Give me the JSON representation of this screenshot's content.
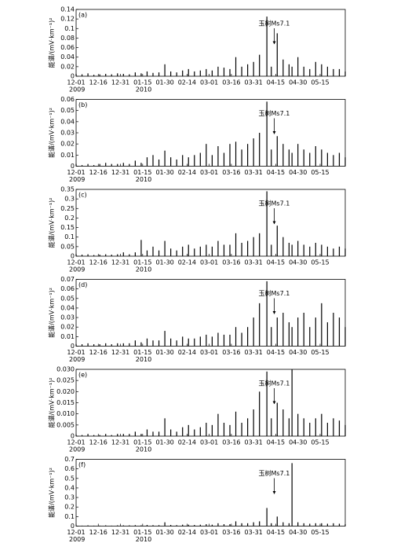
{
  "chart_data": [
    {
      "type": "bar",
      "panel_label": "(a)",
      "y_label": "能谱/(mV·km⁻¹)²",
      "color": "#000000",
      "x": [
        0,
        4,
        8,
        12,
        16,
        20,
        24,
        28,
        32,
        36,
        40,
        44,
        48,
        52,
        56,
        60,
        64,
        68,
        72,
        76,
        80,
        84,
        88,
        92,
        96,
        100,
        104,
        108,
        112,
        116,
        120,
        124,
        129,
        132,
        136,
        140,
        144,
        146,
        150,
        154,
        158,
        162,
        166,
        170,
        174,
        178,
        182
      ],
      "values": [
        0.005,
        0.004,
        0.006,
        0.003,
        0.004,
        0.005,
        0.004,
        0.006,
        0.005,
        0.004,
        0.008,
        0.006,
        0.01,
        0.007,
        0.008,
        0.025,
        0.01,
        0.008,
        0.012,
        0.015,
        0.01,
        0.012,
        0.015,
        0.012,
        0.02,
        0.018,
        0.015,
        0.04,
        0.02,
        0.025,
        0.03,
        0.045,
        0.125,
        0.02,
        0.09,
        0.035,
        0.025,
        0.02,
        0.04,
        0.02,
        0.015,
        0.03,
        0.025,
        0.02,
        0.015,
        0.015,
        0.01
      ],
      "xlim": [
        0,
        182
      ],
      "ylim": [
        0,
        0.14
      ],
      "yticks": [
        0,
        0.02,
        0.04,
        0.06,
        0.08,
        0.1,
        0.12,
        0.14
      ],
      "xticks": [
        {
          "value": 0,
          "label": "12-01"
        },
        {
          "value": 15,
          "label": "12-16"
        },
        {
          "value": 30,
          "label": "12-31"
        },
        {
          "value": 45,
          "label": "01-15"
        },
        {
          "value": 60,
          "label": "01-30"
        },
        {
          "value": 75,
          "label": "02-14"
        },
        {
          "value": 90,
          "label": "03-01"
        },
        {
          "value": 105,
          "label": "03-16"
        },
        {
          "value": 120,
          "label": "03-31"
        },
        {
          "value": 135,
          "label": "04-15"
        },
        {
          "value": 150,
          "label": "04-30"
        },
        {
          "value": 165,
          "label": "05-15"
        }
      ],
      "x_year_labels": [
        {
          "value": 0,
          "label": "2009"
        },
        {
          "value": 45,
          "label": "2010"
        }
      ],
      "annotation": {
        "text": "玉树Ms7.1",
        "x": 134
      }
    },
    {
      "type": "bar",
      "panel_label": "(b)",
      "y_label": "能谱/(mV·km⁻¹)²",
      "color": "#000000",
      "x": [
        0,
        4,
        8,
        12,
        16,
        20,
        24,
        28,
        32,
        36,
        40,
        44,
        48,
        52,
        56,
        60,
        64,
        68,
        72,
        76,
        80,
        84,
        88,
        92,
        96,
        100,
        104,
        108,
        112,
        116,
        120,
        124,
        129,
        132,
        136,
        140,
        144,
        146,
        150,
        154,
        158,
        162,
        166,
        170,
        174,
        178,
        182
      ],
      "values": [
        0.002,
        0.001,
        0.002,
        0.001,
        0.002,
        0.003,
        0.002,
        0.002,
        0.003,
        0.002,
        0.005,
        0.003,
        0.008,
        0.01,
        0.006,
        0.014,
        0.008,
        0.006,
        0.01,
        0.008,
        0.01,
        0.012,
        0.02,
        0.01,
        0.018,
        0.012,
        0.02,
        0.022,
        0.015,
        0.02,
        0.025,
        0.03,
        0.058,
        0.015,
        0.027,
        0.02,
        0.015,
        0.012,
        0.02,
        0.015,
        0.012,
        0.018,
        0.015,
        0.012,
        0.01,
        0.012,
        0.008
      ],
      "xlim": [
        0,
        182
      ],
      "ylim": [
        0,
        0.06
      ],
      "yticks": [
        0,
        0.01,
        0.02,
        0.03,
        0.04,
        0.05,
        0.06
      ],
      "xticks": [
        {
          "value": 0,
          "label": "12-01"
        },
        {
          "value": 15,
          "label": "12-16"
        },
        {
          "value": 30,
          "label": "12-31"
        },
        {
          "value": 45,
          "label": "01-15"
        },
        {
          "value": 60,
          "label": "01-30"
        },
        {
          "value": 75,
          "label": "02-14"
        },
        {
          "value": 90,
          "label": "03-01"
        },
        {
          "value": 105,
          "label": "03-16"
        },
        {
          "value": 120,
          "label": "03-31"
        },
        {
          "value": 135,
          "label": "04-15"
        },
        {
          "value": 150,
          "label": "04-30"
        },
        {
          "value": 165,
          "label": "05-15"
        }
      ],
      "x_year_labels": [
        {
          "value": 0,
          "label": "2009"
        },
        {
          "value": 45,
          "label": "2010"
        }
      ],
      "annotation": {
        "text": "玉树Ms7.1",
        "x": 134
      }
    },
    {
      "type": "bar",
      "panel_label": "(c)",
      "y_label": "能谱/(mV·km⁻¹)²",
      "color": "#000000",
      "x": [
        0,
        4,
        8,
        12,
        16,
        20,
        24,
        28,
        32,
        36,
        40,
        44,
        48,
        52,
        56,
        60,
        64,
        68,
        72,
        76,
        80,
        84,
        88,
        92,
        96,
        100,
        104,
        108,
        112,
        116,
        120,
        124,
        129,
        132,
        136,
        140,
        144,
        146,
        150,
        154,
        158,
        162,
        166,
        170,
        174,
        178,
        182
      ],
      "values": [
        0.01,
        0.008,
        0.01,
        0.006,
        0.008,
        0.01,
        0.008,
        0.01,
        0.02,
        0.01,
        0.02,
        0.085,
        0.03,
        0.05,
        0.03,
        0.08,
        0.04,
        0.03,
        0.05,
        0.06,
        0.04,
        0.05,
        0.06,
        0.05,
        0.08,
        0.06,
        0.06,
        0.12,
        0.07,
        0.08,
        0.1,
        0.12,
        0.34,
        0.06,
        0.16,
        0.1,
        0.07,
        0.06,
        0.08,
        0.06,
        0.05,
        0.07,
        0.06,
        0.05,
        0.04,
        0.05,
        0.04
      ],
      "xlim": [
        0,
        182
      ],
      "ylim": [
        0,
        0.35
      ],
      "yticks": [
        0,
        0.05,
        0.1,
        0.15,
        0.2,
        0.25,
        0.3,
        0.35
      ],
      "xticks": [
        {
          "value": 0,
          "label": "12-01"
        },
        {
          "value": 15,
          "label": "12-16"
        },
        {
          "value": 30,
          "label": "12-31"
        },
        {
          "value": 45,
          "label": "01-15"
        },
        {
          "value": 60,
          "label": "01-30"
        },
        {
          "value": 75,
          "label": "02-14"
        },
        {
          "value": 90,
          "label": "03-01"
        },
        {
          "value": 105,
          "label": "03-16"
        },
        {
          "value": 120,
          "label": "03-31"
        },
        {
          "value": 135,
          "label": "04-15"
        },
        {
          "value": 150,
          "label": "04-30"
        },
        {
          "value": 165,
          "label": "05-15"
        }
      ],
      "x_year_labels": [
        {
          "value": 0,
          "label": "2009"
        },
        {
          "value": 45,
          "label": "2010"
        }
      ],
      "annotation": {
        "text": "玉树Ms7.1",
        "x": 134
      }
    },
    {
      "type": "bar",
      "panel_label": "(d)",
      "y_label": "能谱/(mV·km⁻¹)²",
      "color": "#000000",
      "x": [
        0,
        4,
        8,
        12,
        16,
        20,
        24,
        28,
        32,
        36,
        40,
        44,
        48,
        52,
        56,
        60,
        64,
        68,
        72,
        76,
        80,
        84,
        88,
        92,
        96,
        100,
        104,
        108,
        112,
        116,
        120,
        124,
        129,
        132,
        136,
        140,
        144,
        146,
        150,
        154,
        158,
        162,
        166,
        170,
        174,
        178,
        182
      ],
      "values": [
        0.002,
        0.002,
        0.003,
        0.002,
        0.002,
        0.003,
        0.002,
        0.003,
        0.003,
        0.003,
        0.006,
        0.004,
        0.008,
        0.006,
        0.006,
        0.016,
        0.008,
        0.006,
        0.01,
        0.008,
        0.008,
        0.01,
        0.012,
        0.01,
        0.014,
        0.012,
        0.012,
        0.02,
        0.014,
        0.02,
        0.03,
        0.045,
        0.068,
        0.02,
        0.03,
        0.035,
        0.025,
        0.02,
        0.03,
        0.035,
        0.02,
        0.03,
        0.045,
        0.025,
        0.035,
        0.03,
        0.02
      ],
      "xlim": [
        0,
        182
      ],
      "ylim": [
        0,
        0.07
      ],
      "yticks": [
        0,
        0.01,
        0.02,
        0.03,
        0.04,
        0.05,
        0.06,
        0.07
      ],
      "xticks": [
        {
          "value": 0,
          "label": "12-01"
        },
        {
          "value": 15,
          "label": "12-16"
        },
        {
          "value": 30,
          "label": "12-31"
        },
        {
          "value": 45,
          "label": "01-15"
        },
        {
          "value": 60,
          "label": "01-30"
        },
        {
          "value": 75,
          "label": "02-14"
        },
        {
          "value": 90,
          "label": "03-01"
        },
        {
          "value": 105,
          "label": "03-16"
        },
        {
          "value": 120,
          "label": "03-31"
        },
        {
          "value": 135,
          "label": "04-15"
        },
        {
          "value": 150,
          "label": "04-30"
        },
        {
          "value": 165,
          "label": "05-15"
        }
      ],
      "x_year_labels": [
        {
          "value": 0,
          "label": "2009"
        },
        {
          "value": 45,
          "label": "2010"
        }
      ],
      "annotation": {
        "text": "玉树Ms7.1",
        "x": 134
      }
    },
    {
      "type": "bar",
      "panel_label": "(e)",
      "y_label": "能谱/(mV·km⁻¹)²",
      "color": "#000000",
      "x": [
        0,
        4,
        8,
        12,
        16,
        20,
        24,
        28,
        32,
        36,
        40,
        44,
        48,
        52,
        56,
        60,
        64,
        68,
        72,
        76,
        80,
        84,
        88,
        92,
        96,
        100,
        104,
        108,
        112,
        116,
        120,
        124,
        129,
        132,
        136,
        140,
        144,
        146,
        150,
        154,
        158,
        162,
        166,
        170,
        174,
        178,
        182
      ],
      "values": [
        0.0005,
        0.0005,
        0.001,
        0.0005,
        0.0005,
        0.001,
        0.0005,
        0.001,
        0.001,
        0.001,
        0.002,
        0.001,
        0.003,
        0.002,
        0.002,
        0.008,
        0.003,
        0.002,
        0.004,
        0.005,
        0.003,
        0.004,
        0.006,
        0.005,
        0.01,
        0.006,
        0.005,
        0.011,
        0.006,
        0.008,
        0.012,
        0.02,
        0.029,
        0.008,
        0.015,
        0.012,
        0.008,
        0.03,
        0.01,
        0.008,
        0.006,
        0.008,
        0.01,
        0.006,
        0.008,
        0.007,
        0.005
      ],
      "xlim": [
        0,
        182
      ],
      "ylim": [
        0,
        0.03
      ],
      "yticks": [
        0,
        0.005,
        {
          "value": 0.01,
          "label": "0.010"
        },
        0.015,
        {
          "value": 0.02,
          "label": "0.020"
        },
        0.025,
        {
          "value": 0.03,
          "label": "0.030"
        }
      ],
      "xticks": [
        {
          "value": 0,
          "label": "12-01"
        },
        {
          "value": 15,
          "label": "12-16"
        },
        {
          "value": 30,
          "label": "12-31"
        },
        {
          "value": 45,
          "label": "01-15"
        },
        {
          "value": 60,
          "label": "01-30"
        },
        {
          "value": 75,
          "label": "02-14"
        },
        {
          "value": 90,
          "label": "03-01"
        },
        {
          "value": 105,
          "label": "03-16"
        },
        {
          "value": 120,
          "label": "03-31"
        },
        {
          "value": 135,
          "label": "04-15"
        },
        {
          "value": 150,
          "label": "04-30"
        },
        {
          "value": 165,
          "label": "05-15"
        }
      ],
      "x_year_labels": [
        {
          "value": 0,
          "label": "2009"
        },
        {
          "value": 45,
          "label": "2010"
        }
      ],
      "annotation": {
        "text": "玉树Ms7.1",
        "x": 134
      }
    },
    {
      "type": "bar",
      "panel_label": "(f)",
      "y_label": "能谱/(mV·km⁻¹)²",
      "color": "#000000",
      "x": [
        0,
        4,
        8,
        12,
        16,
        20,
        24,
        28,
        32,
        36,
        40,
        44,
        48,
        52,
        56,
        60,
        64,
        68,
        72,
        76,
        80,
        84,
        88,
        92,
        96,
        100,
        104,
        108,
        112,
        116,
        120,
        124,
        129,
        132,
        136,
        140,
        144,
        146,
        150,
        154,
        158,
        162,
        166,
        170,
        174,
        178,
        182
      ],
      "values": [
        0.005,
        0.005,
        0.008,
        0.005,
        0.005,
        0.008,
        0.005,
        0.008,
        0.008,
        0.008,
        0.01,
        0.008,
        0.012,
        0.01,
        0.01,
        0.04,
        0.012,
        0.01,
        0.015,
        0.015,
        0.012,
        0.015,
        0.02,
        0.015,
        0.03,
        0.02,
        0.02,
        0.05,
        0.03,
        0.03,
        0.04,
        0.05,
        0.19,
        0.03,
        0.1,
        0.04,
        0.03,
        0.66,
        0.04,
        0.03,
        0.025,
        0.03,
        0.03,
        0.025,
        0.03,
        0.025,
        0.02
      ],
      "xlim": [
        0,
        182
      ],
      "ylim": [
        0,
        0.7
      ],
      "yticks": [
        0,
        0.1,
        0.2,
        0.3,
        0.4,
        0.5,
        0.6,
        0.7
      ],
      "xticks": [
        {
          "value": 0,
          "label": "12-01"
        },
        {
          "value": 15,
          "label": "12-16"
        },
        {
          "value": 30,
          "label": "12-31"
        },
        {
          "value": 45,
          "label": "01-15"
        },
        {
          "value": 60,
          "label": "01-30"
        },
        {
          "value": 75,
          "label": "02-14"
        },
        {
          "value": 90,
          "label": "03-01"
        },
        {
          "value": 105,
          "label": "03-16"
        },
        {
          "value": 120,
          "label": "03-31"
        },
        {
          "value": 135,
          "label": "04-15"
        },
        {
          "value": 150,
          "label": "04-30"
        },
        {
          "value": 165,
          "label": "05-15"
        }
      ],
      "x_year_labels": [
        {
          "value": 0,
          "label": "2009"
        },
        {
          "value": 45,
          "label": "2010"
        }
      ],
      "annotation": {
        "text": "玉树Ms7.1",
        "x": 134
      }
    }
  ]
}
